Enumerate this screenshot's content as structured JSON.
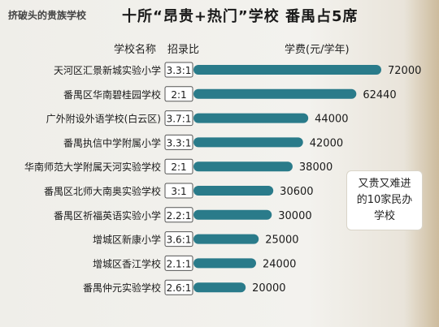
{
  "header": {
    "tag": "挤破头的贵族学校",
    "title": "十所“昂贵+热门”学校  番禺占5席"
  },
  "columns": {
    "school": "学校名称",
    "ratio": "招录比",
    "fee": "学费(元/学年)"
  },
  "callout": {
    "text": "又贵又难进的10家民办学校"
  },
  "colors": {
    "bar": "#2a7b8a",
    "ratio_border": "#555555"
  },
  "chart_data": {
    "type": "bar",
    "orientation": "horizontal",
    "title": "十所“昂贵+热门”学校  番禺占5席",
    "ylabel": "学费(元/学年)",
    "categories": [
      "天河区汇景新城实验小学",
      "番禺区华南碧桂园学校",
      "广外附设外语学校(白云区)",
      "番禺执信中学附属小学",
      "华南师范大学附属天河实验学校",
      "番禺区北师大南奥实验学校",
      "番禺区祈福英语实验小学",
      "增城区新康小学",
      "增城区香江学校",
      "番禺仲元实验学校"
    ],
    "ratios": [
      "3.3:1",
      "2:1",
      "3.7:1",
      "3.3:1",
      "2:1",
      "3:1",
      "2.2:1",
      "3.6:1",
      "2.1:1",
      "2.6:1"
    ],
    "values": [
      72000,
      62440,
      44000,
      42000,
      38000,
      30600,
      30000,
      25000,
      24000,
      20000
    ],
    "value_labels": [
      "72000",
      "62440",
      "44000",
      "42000",
      "38000",
      "30600",
      "30000",
      "25000",
      "24000",
      "20000"
    ]
  }
}
